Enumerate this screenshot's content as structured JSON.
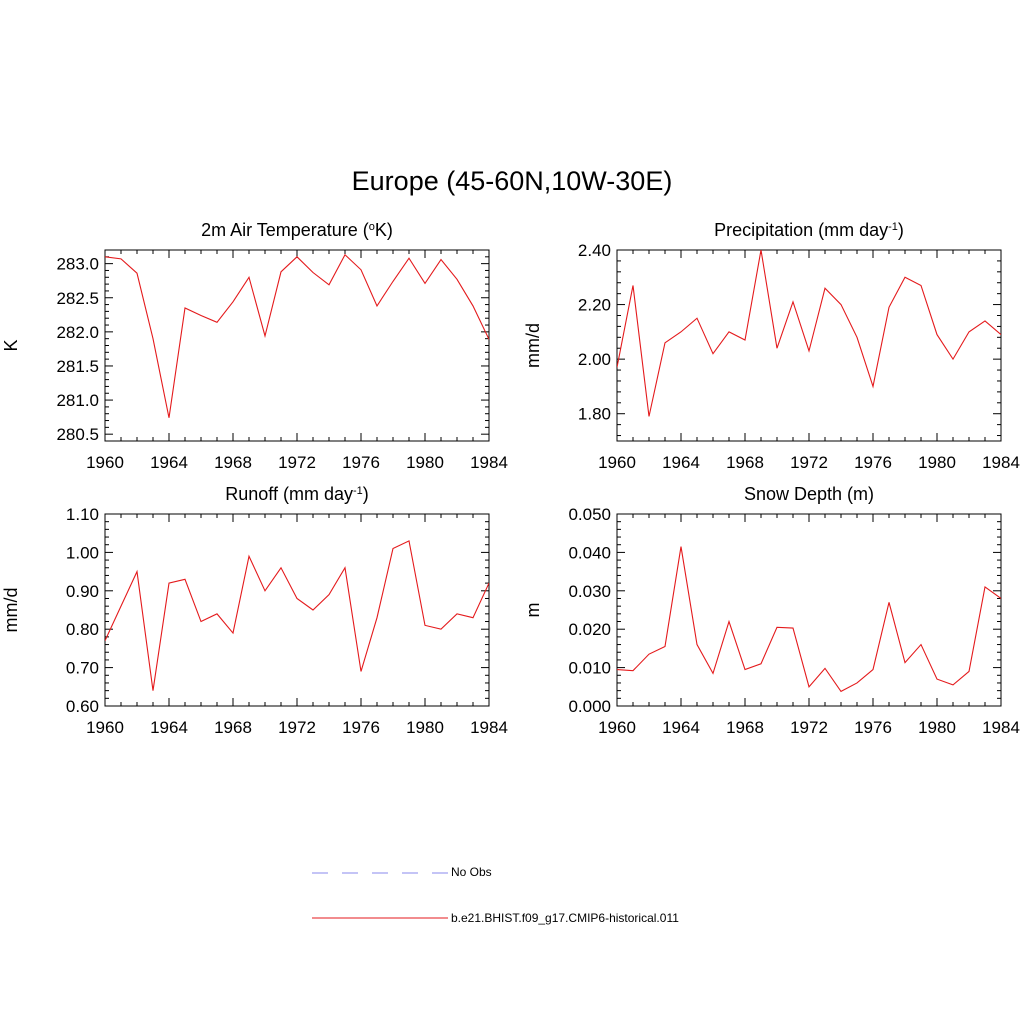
{
  "figure": {
    "title": "Europe (45-60N,10W-30E)",
    "line_color": "#e41a1c",
    "legend": {
      "obs_label": "No Obs",
      "obs_color": "#a0a0f0",
      "model_label": "b.e21.BHIST.f09_g17.CMIP6-historical.011",
      "model_color": "#e41a1c"
    }
  },
  "chart_data": [
    {
      "type": "line",
      "title_main": "2m Air Temperature (",
      "title_sup": "o",
      "title_end": "K)",
      "ylabel": "K",
      "xlim": [
        1960,
        1984
      ],
      "ylim": [
        280.4,
        283.2
      ],
      "xticks": [
        1960,
        1964,
        1968,
        1972,
        1976,
        1980,
        1984
      ],
      "yticks": [
        "280.5",
        "281.0",
        "281.5",
        "282.0",
        "282.5",
        "283.0"
      ],
      "series": [
        {
          "x": [
            1960,
            1961,
            1962,
            1963,
            1964,
            1965,
            1966,
            1967,
            1968,
            1969,
            1970,
            1971,
            1972,
            1973,
            1974,
            1975,
            1976,
            1977,
            1978,
            1979,
            1980,
            1981,
            1982,
            1983,
            1984
          ],
          "values": [
            283.1,
            283.07,
            282.86,
            281.9,
            280.74,
            282.35,
            282.24,
            282.14,
            282.44,
            282.8,
            281.94,
            282.88,
            283.1,
            282.87,
            282.69,
            283.13,
            282.91,
            282.38,
            282.74,
            283.08,
            282.71,
            283.06,
            282.77,
            282.38,
            281.89
          ]
        }
      ]
    },
    {
      "type": "line",
      "title_main": "Precipitation (mm day",
      "title_sup": "-1",
      "title_end": ")",
      "ylabel": "mm/d",
      "xlim": [
        1960,
        1984
      ],
      "ylim": [
        1.7,
        2.4
      ],
      "xticks": [
        1960,
        1964,
        1968,
        1972,
        1976,
        1980,
        1984
      ],
      "yticks": [
        "1.80",
        "2.00",
        "2.20",
        "2.40"
      ],
      "series": [
        {
          "x": [
            1960,
            1961,
            1962,
            1963,
            1964,
            1965,
            1966,
            1967,
            1968,
            1969,
            1970,
            1971,
            1972,
            1973,
            1974,
            1975,
            1976,
            1977,
            1978,
            1979,
            1980,
            1981,
            1982,
            1983,
            1984
          ],
          "values": [
            1.97,
            2.27,
            1.79,
            2.06,
            2.1,
            2.15,
            2.02,
            2.1,
            2.07,
            2.4,
            2.04,
            2.21,
            2.03,
            2.26,
            2.2,
            2.08,
            1.9,
            2.19,
            2.3,
            2.27,
            2.09,
            2.0,
            2.1,
            2.14,
            2.09
          ]
        }
      ]
    },
    {
      "type": "line",
      "title_main": "Runoff (mm day",
      "title_sup": "-1",
      "title_end": ")",
      "ylabel": "mm/d",
      "xlim": [
        1960,
        1984
      ],
      "ylim": [
        0.6,
        1.1
      ],
      "xticks": [
        1960,
        1964,
        1968,
        1972,
        1976,
        1980,
        1984
      ],
      "yticks": [
        "0.60",
        "0.70",
        "0.80",
        "0.90",
        "1.00",
        "1.10"
      ],
      "series": [
        {
          "x": [
            1960,
            1961,
            1962,
            1963,
            1964,
            1965,
            1966,
            1967,
            1968,
            1969,
            1970,
            1971,
            1972,
            1973,
            1974,
            1975,
            1976,
            1977,
            1978,
            1979,
            1980,
            1981,
            1982,
            1983,
            1984
          ],
          "values": [
            0.77,
            0.86,
            0.95,
            0.64,
            0.92,
            0.93,
            0.82,
            0.84,
            0.79,
            0.99,
            0.9,
            0.96,
            0.88,
            0.85,
            0.89,
            0.96,
            0.69,
            0.83,
            1.01,
            1.03,
            0.81,
            0.8,
            0.84,
            0.83,
            0.92
          ]
        }
      ]
    },
    {
      "type": "line",
      "title_main": "Snow Depth (m)",
      "title_sup": "",
      "title_end": "",
      "ylabel": "m",
      "xlim": [
        1960,
        1984
      ],
      "ylim": [
        0.0,
        0.05
      ],
      "xticks": [
        1960,
        1964,
        1968,
        1972,
        1976,
        1980,
        1984
      ],
      "yticks": [
        "0.000",
        "0.010",
        "0.020",
        "0.030",
        "0.040",
        "0.050"
      ],
      "series": [
        {
          "x": [
            1960,
            1961,
            1962,
            1963,
            1964,
            1965,
            1966,
            1967,
            1968,
            1969,
            1970,
            1971,
            1972,
            1973,
            1974,
            1975,
            1976,
            1977,
            1978,
            1979,
            1980,
            1981,
            1982,
            1983,
            1984
          ],
          "values": [
            0.0095,
            0.0092,
            0.0135,
            0.0155,
            0.0415,
            0.016,
            0.0085,
            0.022,
            0.0095,
            0.011,
            0.0205,
            0.0203,
            0.005,
            0.0098,
            0.0038,
            0.006,
            0.0095,
            0.027,
            0.0113,
            0.016,
            0.007,
            0.0055,
            0.009,
            0.031,
            0.028
          ]
        }
      ]
    }
  ]
}
